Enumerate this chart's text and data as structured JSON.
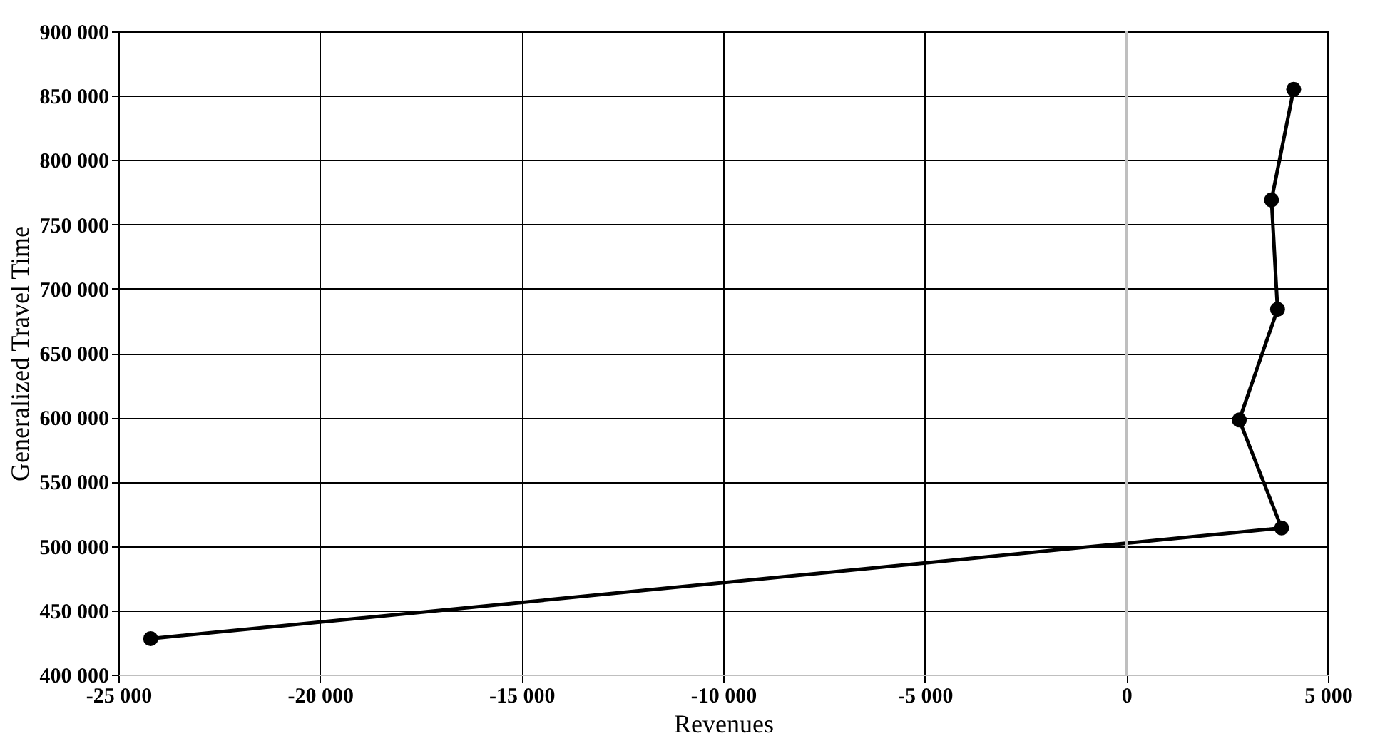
{
  "chart_data": {
    "type": "line",
    "xlabel": "Revenues",
    "ylabel": "Generalized Travel Time",
    "x": [
      -24200,
      3850,
      2800,
      3750,
      3600,
      4150
    ],
    "series": [
      {
        "color": "#000000",
        "values": [
          428000,
          514000,
          598000,
          684000,
          769000,
          855000
        ]
      }
    ],
    "xlim": [
      -25000,
      5000
    ],
    "xticks": [
      {
        "value": -25000,
        "label": "-25 000"
      },
      {
        "value": -20000,
        "label": "-20 000"
      },
      {
        "value": -15000,
        "label": "-15 000"
      },
      {
        "value": -10000,
        "label": "-10 000"
      },
      {
        "value": -5000,
        "label": "-5 000"
      },
      0,
      {
        "value": 5000,
        "label": "5 000"
      }
    ],
    "ylim": [
      400000,
      900000
    ],
    "yticks": [
      {
        "value": 400000,
        "label": "400 000"
      },
      {
        "value": 450000,
        "label": "450 000"
      },
      {
        "value": 500000,
        "label": "500 000"
      },
      {
        "value": 550000,
        "label": "550 000"
      },
      {
        "value": 600000,
        "label": "600 000"
      },
      {
        "value": 650000,
        "label": "650 000"
      },
      {
        "value": 700000,
        "label": "700 000"
      },
      {
        "value": 750000,
        "label": "750 000"
      },
      {
        "value": 800000,
        "label": "800 000"
      },
      {
        "value": 850000,
        "label": "850 000"
      },
      {
        "value": 900000,
        "label": "900 000"
      }
    ],
    "ref_lines": [
      {
        "axis": "x",
        "value": 0,
        "color": "#bfbfbf"
      }
    ],
    "grid": true,
    "marker": "circle",
    "line_style": "solid",
    "legend": false
  }
}
